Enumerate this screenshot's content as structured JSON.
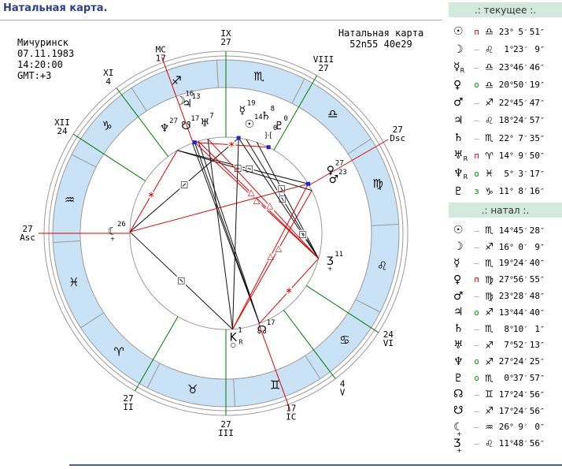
{
  "page": {
    "title": "Натальная карта."
  },
  "chart": {
    "place": "Мичуринск",
    "date": "07.11.1983",
    "time": "14:20:00",
    "gmt": "GMT:+3",
    "header_line1": "Натальная карта",
    "header_line2": "52n55  40e29",
    "signs": [
      "♈",
      "♉",
      "♊",
      "♋",
      "♌",
      "♍",
      "♎",
      "♏",
      "♐",
      "♑",
      "♒",
      "♓"
    ],
    "colors": {
      "band": "#c9e2f6",
      "line": "#999999",
      "green": "#007a00",
      "red": "#e00000",
      "aspect_black": "#111111",
      "marker": "#2222dd",
      "dign_red": "#cc0000",
      "dign_green": "#009900"
    },
    "cusps": [
      {
        "name": "asc",
        "l1": "27",
        "l2": "Asc",
        "lon": 327,
        "axis": true,
        "lr": 252
      },
      {
        "name": "house-2",
        "l1": "27",
        "l2": "II",
        "lon": 27,
        "lr": 248
      },
      {
        "name": "house-3",
        "l1": "27",
        "l2": "III",
        "lon": 57,
        "lr": 248
      },
      {
        "name": "ic",
        "l1": "17",
        "l2": "IC",
        "lon": 77,
        "axis": true,
        "lr": 242
      },
      {
        "name": "house-5",
        "l1": "4",
        "l2": "V",
        "lon": 94,
        "lr": 246
      },
      {
        "name": "house-6",
        "l1": "24",
        "l2": "VI",
        "lon": 114,
        "lr": 246
      },
      {
        "name": "dsc",
        "l1": "27",
        "l2": "Dsc",
        "lon": 177,
        "axis": true,
        "lr": 252
      },
      {
        "name": "house-8",
        "l1": "VIII",
        "l2": "27",
        "lon": 207,
        "lr": 248
      },
      {
        "name": "house-9",
        "l1": "IX",
        "l2": "27",
        "lon": 237,
        "lr": 248
      },
      {
        "name": "mc",
        "l1": "MC",
        "l2": "17",
        "lon": 257,
        "axis": true,
        "lr": 242
      },
      {
        "name": "house-11",
        "l1": "XI",
        "l2": "4",
        "lon": 274,
        "lr": 248
      },
      {
        "name": "house-12",
        "l1": "XII",
        "l2": "24",
        "lon": 294,
        "lr": 248
      }
    ],
    "planets": [
      {
        "key": "sun",
        "glyph": "☉",
        "label": "14",
        "lon": 224.76,
        "r": 141
      },
      {
        "key": "moon",
        "glyph": "☽",
        "label": "16",
        "lon": 256.0,
        "r": 177
      },
      {
        "key": "mercury",
        "glyph": "☿",
        "label": "19",
        "lon": 229.41,
        "r": 157
      },
      {
        "key": "venus",
        "glyph": "♀",
        "label": "27",
        "lon": 177.95,
        "r": 155
      },
      {
        "key": "mars",
        "glyph": "♂",
        "label": "23",
        "lon": 173.48,
        "r": 153
      },
      {
        "key": "jupiter",
        "glyph": "♃",
        "label": "13",
        "lon": 253.74,
        "r": 171
      },
      {
        "key": "saturn",
        "glyph": "♄",
        "label": "8",
        "lon": 218.17,
        "r": 157
      },
      {
        "key": "uranus",
        "glyph": "♅",
        "label": "7",
        "lon": 247.87,
        "r": 142
      },
      {
        "key": "neptune",
        "glyph": "♆",
        "label": "27",
        "lon": 267.4,
        "r": 154
      },
      {
        "key": "pluto",
        "glyph": "♇",
        "label": "0",
        "lon": 210.63,
        "r": 152
      },
      {
        "key": "nnode",
        "glyph": "☊",
        "label": "17",
        "lon": 77.42,
        "r": 131
      },
      {
        "key": "snode",
        "glyph": "☋",
        "label": "17",
        "lon": 257.42,
        "r": 145
      },
      {
        "key": "lilith",
        "glyph": "☾",
        "g2": "+",
        "label": "26",
        "lon": 326.15,
        "r": 144
      },
      {
        "key": "selena",
        "glyph": "Ʒ",
        "g2": "+",
        "label": "11",
        "lon": 131.81,
        "r": 137
      },
      {
        "key": "chiron",
        "glyph": "K",
        "g2": "○",
        "sub": "R",
        "label": "1",
        "lon": 61.0,
        "r": 133
      },
      {
        "key": "proserpina",
        "glyph": "]·[",
        "label": "0",
        "lon": 213.5,
        "r": 135
      }
    ],
    "aspects": [
      {
        "a": "venus",
        "b": "neptune",
        "c": "black",
        "s": "□",
        "t": 0.45
      },
      {
        "a": "mars",
        "b": "neptune",
        "c": "black",
        "s": "□",
        "t": 0.55
      },
      {
        "a": "sun",
        "b": "selena",
        "c": "black",
        "s": "□",
        "t": 0.5
      },
      {
        "a": "saturn",
        "b": "selena",
        "c": "black",
        "s": "□",
        "t": 0.4
      },
      {
        "a": "mercury",
        "b": "selena",
        "c": "black",
        "s": "□",
        "t": 0.8
      },
      {
        "a": "lilith",
        "b": "mercury",
        "c": "black",
        "s": "□",
        "t": 0.5
      },
      {
        "a": "lilith",
        "b": "chiron",
        "c": "black",
        "s": "□",
        "t": 0.5
      },
      {
        "a": "moon",
        "b": "nnode",
        "c": "black"
      },
      {
        "a": "jupiter",
        "b": "nnode",
        "c": "black"
      },
      {
        "a": "uranus",
        "b": "chiron",
        "c": "black"
      },
      {
        "a": "mercury",
        "b": "chiron",
        "c": "black"
      },
      {
        "a": "nnode",
        "b": "snode",
        "c": "black"
      },
      {
        "a": "moon",
        "b": "selena",
        "c": "red",
        "s": "△",
        "t": 0.5
      },
      {
        "a": "jupiter",
        "b": "selena",
        "c": "red",
        "s": "△",
        "t": 0.44
      },
      {
        "a": "uranus",
        "b": "selena",
        "c": "red",
        "s": "△",
        "t": 0.56
      },
      {
        "a": "venus",
        "b": "chiron",
        "c": "red",
        "s": "△",
        "t": 0.5
      },
      {
        "a": "mars",
        "b": "chiron",
        "c": "red",
        "s": "△",
        "t": 0.42
      },
      {
        "a": "lilith",
        "b": "neptune",
        "c": "red",
        "s": "∗",
        "t": 0.45
      },
      {
        "a": "nnode",
        "b": "selena",
        "c": "red",
        "s": "∗",
        "t": 0.5
      },
      {
        "a": "moon",
        "b": "pluto",
        "c": "red",
        "s": "∗",
        "t": 0.5
      },
      {
        "a": "lilith",
        "b": "venus",
        "c": "red"
      }
    ],
    "markers": [
      "moon",
      "mercury",
      "pluto",
      "venus"
    ]
  },
  "panels": [
    {
      "title": ".: текущее :.",
      "rows": [
        {
          "key": "sun",
          "g": "☉",
          "dig": "п",
          "dc": "r",
          "sign": "♎",
          "d": "23",
          "m": "5",
          "s": "51"
        },
        {
          "key": "moon",
          "g": "☽",
          "dig": "–",
          "sign": "♌",
          "d": "1",
          "m": "23",
          "s": "9"
        },
        {
          "key": "mercury",
          "g": "☿",
          "sub": "R",
          "dig": "–",
          "sign": "♎",
          "d": "23",
          "m": "46",
          "s": "46"
        },
        {
          "key": "venus",
          "g": "♀",
          "dig": "o",
          "dc": "g",
          "sign": "♎",
          "d": "20",
          "m": "50",
          "s": "19"
        },
        {
          "key": "mars",
          "g": "♂",
          "dig": "–",
          "sign": "♐",
          "d": "22",
          "m": "45",
          "s": "47"
        },
        {
          "key": "jupiter",
          "g": "♃",
          "dig": "–",
          "sign": "♌",
          "d": "18",
          "m": "24",
          "s": "57"
        },
        {
          "key": "saturn",
          "g": "♄",
          "dig": "–",
          "sign": "♏",
          "d": "22",
          "m": "7",
          "s": "35"
        },
        {
          "key": "uranus",
          "g": "♅",
          "sub": "R",
          "dig": "п",
          "dc": "r",
          "sign": "♈",
          "d": "14",
          "m": "9",
          "s": "50"
        },
        {
          "key": "neptune",
          "g": "♆",
          "sub": "R",
          "dig": "o",
          "dc": "g",
          "sign": "♓",
          "d": "5",
          "m": "3",
          "s": "17"
        },
        {
          "key": "pluto",
          "g": "♇",
          "dig": "з",
          "dc": "g",
          "sign": "♑",
          "d": "11",
          "m": "8",
          "s": "16"
        }
      ]
    },
    {
      "title": ".: натал :.",
      "rows": [
        {
          "key": "sun",
          "g": "☉",
          "dig": "–",
          "sign": "♏",
          "d": "14",
          "m": "45",
          "s": "28"
        },
        {
          "key": "moon",
          "g": "☽",
          "dig": "–",
          "sign": "♐",
          "d": "16",
          "m": "0",
          "s": "9"
        },
        {
          "key": "mercury",
          "g": "☿",
          "dig": "–",
          "sign": "♏",
          "d": "19",
          "m": "24",
          "s": "40"
        },
        {
          "key": "venus",
          "g": "♀",
          "dig": "п",
          "dc": "r",
          "sign": "♍",
          "d": "27",
          "m": "56",
          "s": "55"
        },
        {
          "key": "mars",
          "g": "♂",
          "dig": "–",
          "sign": "♍",
          "d": "23",
          "m": "28",
          "s": "48"
        },
        {
          "key": "jupiter",
          "g": "♃",
          "dig": "o",
          "dc": "g",
          "sign": "♐",
          "d": "13",
          "m": "44",
          "s": "40"
        },
        {
          "key": "saturn",
          "g": "♄",
          "dig": "–",
          "sign": "♏",
          "d": "8",
          "m": "10",
          "s": "1"
        },
        {
          "key": "uranus",
          "g": "♅",
          "dig": "–",
          "sign": "♐",
          "d": "7",
          "m": "52",
          "s": "13"
        },
        {
          "key": "neptune",
          "g": "♆",
          "dig": "o",
          "dc": "g",
          "sign": "♐",
          "d": "27",
          "m": "24",
          "s": "25"
        },
        {
          "key": "pluto",
          "g": "♇",
          "dig": "o",
          "dc": "g",
          "sign": "♏",
          "d": "0",
          "m": "37",
          "s": "57"
        },
        {
          "key": "nnode",
          "g": "☊",
          "dig": "–",
          "sign": "♊",
          "d": "17",
          "m": "24",
          "s": "56"
        },
        {
          "key": "snode",
          "g": "☋",
          "dig": "–",
          "sign": "♐",
          "d": "17",
          "m": "24",
          "s": "56"
        },
        {
          "key": "lilith",
          "g": "☾",
          "g2": "+",
          "dig": "–",
          "sign": "♒",
          "d": "26",
          "m": "9",
          "s": "0"
        },
        {
          "key": "selena",
          "g": "Ʒ",
          "g2": "+",
          "dig": "–",
          "sign": "♌",
          "d": "11",
          "m": "48",
          "s": "56"
        }
      ]
    }
  ]
}
